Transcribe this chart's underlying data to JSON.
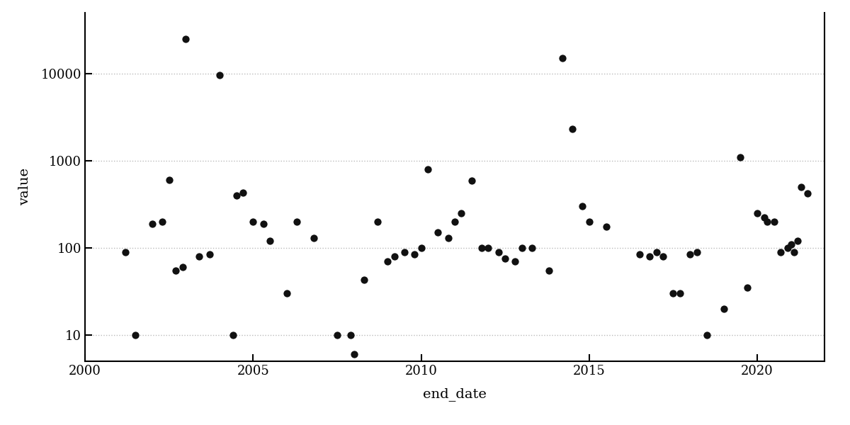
{
  "xlabel": "end_date",
  "ylabel": "value",
  "background_color": "#ffffff",
  "grid_color": "#bbbbbb",
  "dot_color": "#111111",
  "dot_size": 55,
  "xlim": [
    2000,
    2022
  ],
  "ylim": [
    5,
    50000
  ],
  "xticks": [
    2000,
    2005,
    2010,
    2015,
    2020
  ],
  "yticks": [
    10,
    100,
    1000,
    10000
  ],
  "ytick_labels": [
    "10",
    "100",
    "1000",
    "10000"
  ],
  "font_family": "serif",
  "tick_fontsize": 13,
  "label_fontsize": 14,
  "points": [
    [
      2001.2,
      90
    ],
    [
      2001.5,
      10
    ],
    [
      2002.0,
      190
    ],
    [
      2002.3,
      200
    ],
    [
      2002.5,
      600
    ],
    [
      2002.7,
      55
    ],
    [
      2002.9,
      60
    ],
    [
      2003.0,
      25000
    ],
    [
      2003.4,
      80
    ],
    [
      2003.7,
      85
    ],
    [
      2004.0,
      9700
    ],
    [
      2004.4,
      10
    ],
    [
      2004.5,
      400
    ],
    [
      2004.7,
      430
    ],
    [
      2005.0,
      200
    ],
    [
      2005.3,
      190
    ],
    [
      2005.5,
      120
    ],
    [
      2006.0,
      30
    ],
    [
      2006.3,
      200
    ],
    [
      2006.8,
      130
    ],
    [
      2007.5,
      10
    ],
    [
      2007.9,
      10
    ],
    [
      2008.0,
      6
    ],
    [
      2008.3,
      43
    ],
    [
      2008.7,
      200
    ],
    [
      2009.0,
      70
    ],
    [
      2009.2,
      80
    ],
    [
      2009.5,
      90
    ],
    [
      2009.8,
      85
    ],
    [
      2010.0,
      100
    ],
    [
      2010.2,
      800
    ],
    [
      2010.5,
      150
    ],
    [
      2010.8,
      130
    ],
    [
      2011.0,
      200
    ],
    [
      2011.2,
      250
    ],
    [
      2011.5,
      590
    ],
    [
      2011.8,
      100
    ],
    [
      2012.0,
      100
    ],
    [
      2012.3,
      90
    ],
    [
      2012.5,
      75
    ],
    [
      2012.8,
      70
    ],
    [
      2013.0,
      100
    ],
    [
      2013.3,
      100
    ],
    [
      2013.8,
      55
    ],
    [
      2014.2,
      15000
    ],
    [
      2014.5,
      2300
    ],
    [
      2014.8,
      300
    ],
    [
      2015.0,
      200
    ],
    [
      2015.5,
      175
    ],
    [
      2016.5,
      85
    ],
    [
      2016.8,
      80
    ],
    [
      2017.0,
      90
    ],
    [
      2017.2,
      80
    ],
    [
      2017.5,
      30
    ],
    [
      2017.7,
      30
    ],
    [
      2018.0,
      85
    ],
    [
      2018.2,
      90
    ],
    [
      2018.5,
      10
    ],
    [
      2019.0,
      20
    ],
    [
      2019.5,
      1100
    ],
    [
      2019.7,
      35
    ],
    [
      2020.0,
      250
    ],
    [
      2020.2,
      225
    ],
    [
      2020.3,
      200
    ],
    [
      2020.5,
      200
    ],
    [
      2020.7,
      90
    ],
    [
      2020.9,
      100
    ],
    [
      2021.0,
      110
    ],
    [
      2021.1,
      90
    ],
    [
      2021.2,
      120
    ],
    [
      2021.3,
      500
    ],
    [
      2021.5,
      420
    ]
  ]
}
